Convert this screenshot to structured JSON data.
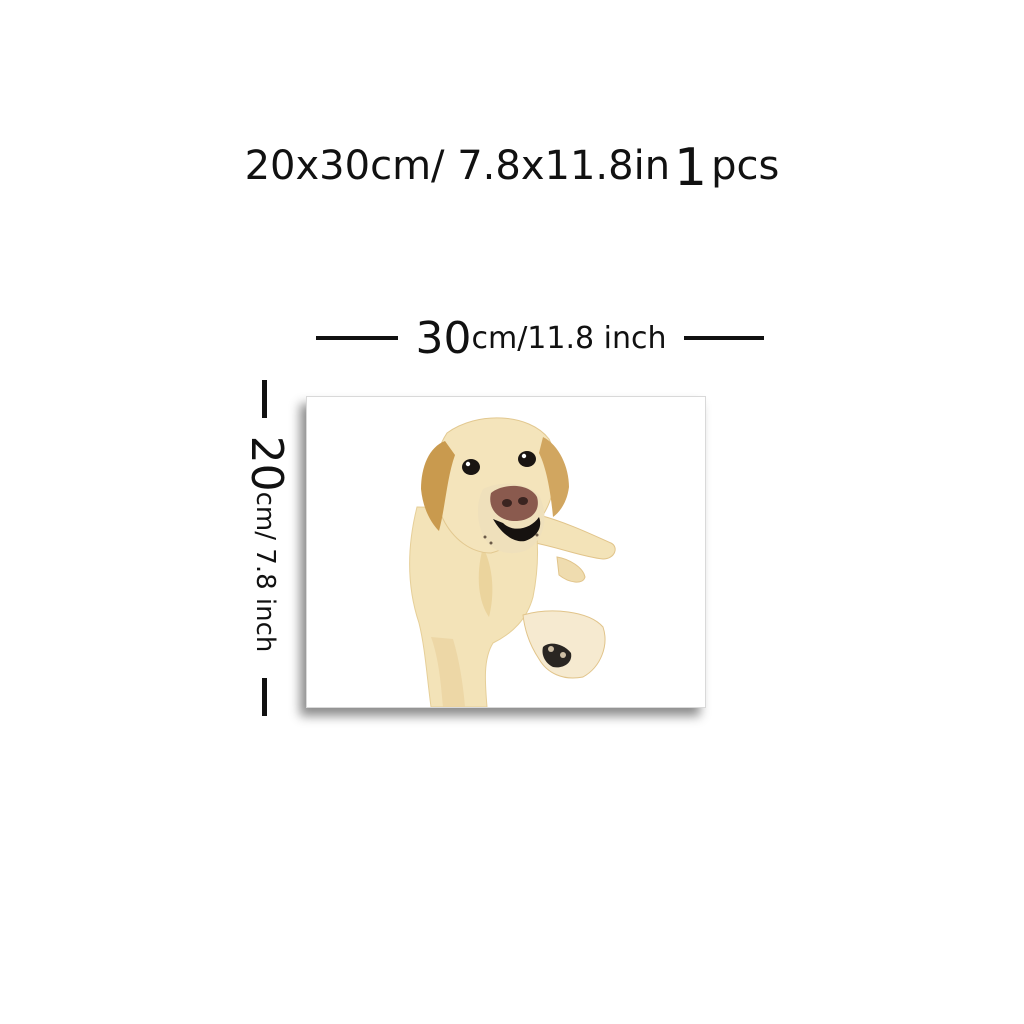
{
  "headline": {
    "size_text": "20x30cm/ 7.8x11.8in",
    "quantity": "1",
    "unit": "pcs"
  },
  "width_label": {
    "value": "30",
    "units": "cm/11.8 inch"
  },
  "height_label": {
    "value": "20",
    "units": "cm/ 7.8 inch"
  },
  "canvas": {
    "subject": "dog-painting",
    "colors": {
      "fur": "#f3e3b8",
      "fur_shade": "#e6c98a",
      "ear": "#c99a4e",
      "nose": "#8a5a4e",
      "outline": "#111111"
    }
  }
}
